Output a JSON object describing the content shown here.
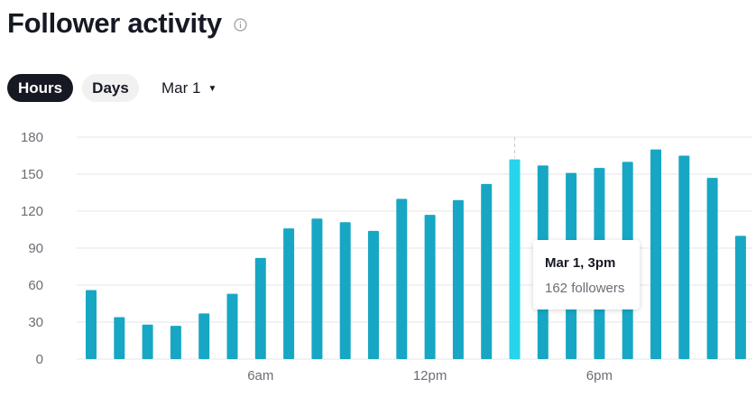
{
  "header": {
    "title": "Follower activity",
    "info_icon": "info-circle-icon"
  },
  "toggles": {
    "hours_label": "Hours",
    "days_label": "Days",
    "selected": "Hours"
  },
  "date_select": {
    "label": "Mar 1",
    "icon": "caret-down-icon"
  },
  "colors": {
    "bar": "#17a7c4",
    "bar_highlight": "#27d4ec",
    "grid": "#e6e6e8",
    "text_dark": "#161823"
  },
  "chart_data": {
    "type": "bar",
    "categories": [
      "0",
      "1",
      "2",
      "3",
      "4",
      "5",
      "6",
      "7",
      "8",
      "9",
      "10",
      "11",
      "12",
      "13",
      "14",
      "15",
      "16",
      "17",
      "18",
      "19",
      "20",
      "21",
      "22",
      "23"
    ],
    "values": [
      56,
      34,
      28,
      27,
      37,
      53,
      82,
      106,
      114,
      111,
      104,
      130,
      117,
      129,
      142,
      162,
      157,
      151,
      155,
      160,
      170,
      165,
      147,
      100
    ],
    "x_tick_labels": [
      {
        "index": 6,
        "label": "6am"
      },
      {
        "index": 12,
        "label": "12pm"
      },
      {
        "index": 18,
        "label": "6pm"
      }
    ],
    "y_ticks": [
      0,
      30,
      60,
      90,
      120,
      150,
      180
    ],
    "ylim": [
      0,
      180
    ],
    "grid": true,
    "highlight_index": 15,
    "tooltip": {
      "title": "Mar 1, 3pm",
      "value": "162 followers"
    }
  }
}
